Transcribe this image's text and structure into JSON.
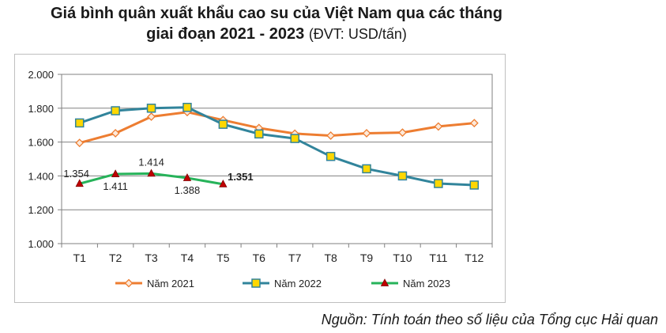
{
  "title_line1": "Giá bình quân xuất khẩu cao su của Việt Nam qua các tháng",
  "title_line2_bold": "giai đoạn 2021 - 2023",
  "title_line2_unit": "(ĐVT: USD/tấn)",
  "source": "Nguồn: Tính toán theo số liệu của Tổng cục Hải quan",
  "chart_data": {
    "type": "line",
    "categories": [
      "T1",
      "T2",
      "T3",
      "T4",
      "T5",
      "T6",
      "T7",
      "T8",
      "T9",
      "T10",
      "T11",
      "T12"
    ],
    "ylim": [
      1000,
      2000
    ],
    "yticks": [
      1000,
      1200,
      1400,
      1600,
      1800,
      2000
    ],
    "ytick_labels": [
      "1.000",
      "1.200",
      "1.400",
      "1.600",
      "1.800",
      "2.000"
    ],
    "grid": true,
    "legend_position": "bottom",
    "series": [
      {
        "name": "Năm 2021",
        "color": "#ed7d31",
        "marker": "diamond",
        "values": [
          1595,
          1652,
          1750,
          1777,
          1730,
          1683,
          1650,
          1638,
          1652,
          1656,
          1692,
          1712
        ]
      },
      {
        "name": "Năm 2022",
        "color": "#31849b",
        "marker": "square",
        "values": [
          1713,
          1785,
          1800,
          1805,
          1705,
          1648,
          1621,
          1515,
          1442,
          1400,
          1355,
          1346
        ]
      },
      {
        "name": "Năm 2023",
        "color": "#27b35a",
        "marker": "triangle",
        "values": [
          1354,
          1411,
          1414,
          1388,
          1351,
          null,
          null,
          null,
          null,
          null,
          null,
          null
        ],
        "data_labels": [
          "1.354",
          "1.411",
          "1.414",
          "1.388",
          "1.351"
        ]
      }
    ]
  }
}
